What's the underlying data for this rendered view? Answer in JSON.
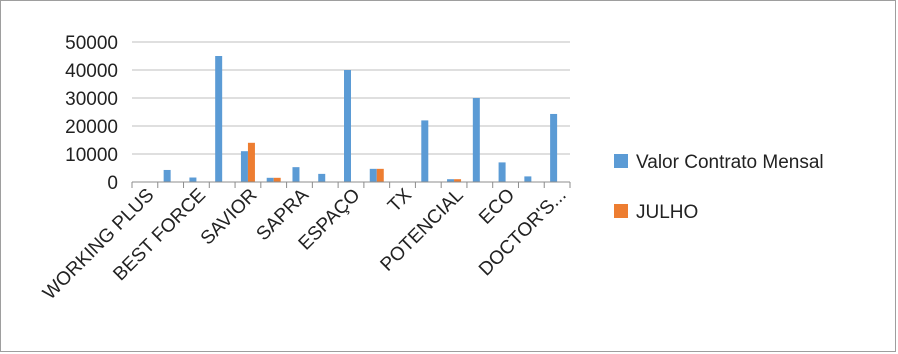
{
  "chart_data": {
    "type": "bar",
    "title": "",
    "xlabel": "",
    "ylabel": "",
    "ylim": [
      0,
      50000
    ],
    "yticks": [
      0,
      10000,
      20000,
      30000,
      40000,
      50000
    ],
    "grid": true,
    "legend_position": "right",
    "x": [
      "WORKING PLUS",
      "",
      "BEST FORCE",
      "",
      "SAVIOR",
      "",
      "SAPRA",
      "",
      "ESPAÇO",
      "",
      "TX",
      "",
      "POTENCIAL",
      "",
      "ECO",
      "",
      "DOCTOR'S..."
    ],
    "series": [
      {
        "name": "Valor Contrato Mensal",
        "color": "#5B9BD5",
        "values": [
          0,
          4300,
          1600,
          45000,
          11000,
          1500,
          5300,
          2900,
          40000,
          4700,
          0,
          22000,
          1000,
          30000,
          7000,
          2000,
          24300
        ]
      },
      {
        "name": "JULHO",
        "color": "#ED7D31",
        "values": [
          0,
          0,
          0,
          0,
          14000,
          1500,
          0,
          0,
          0,
          4700,
          0,
          0,
          1000,
          0,
          0,
          0,
          0
        ]
      }
    ]
  }
}
